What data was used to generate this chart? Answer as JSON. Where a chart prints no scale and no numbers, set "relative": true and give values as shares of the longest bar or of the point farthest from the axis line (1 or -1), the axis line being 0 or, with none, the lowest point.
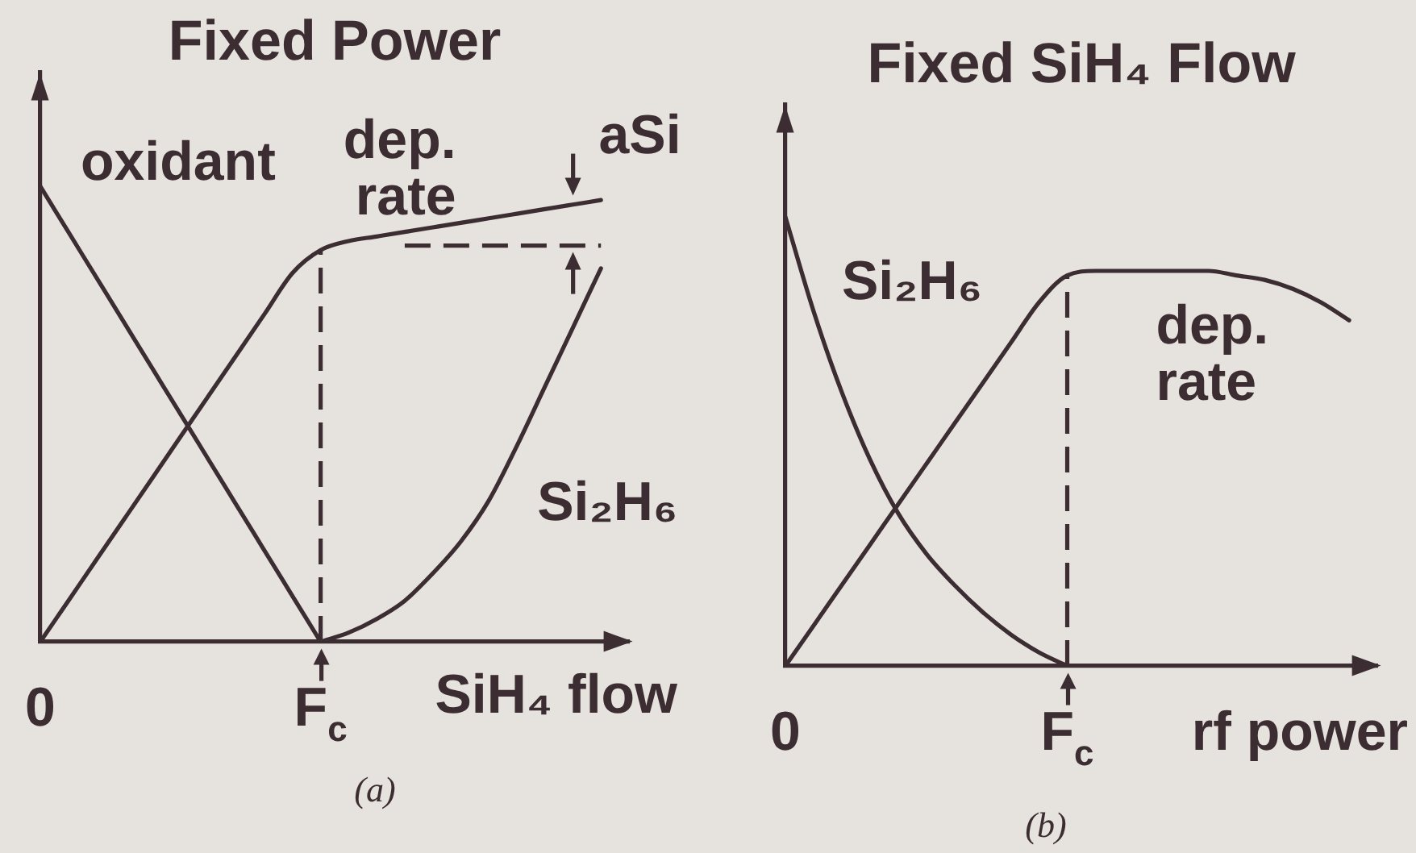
{
  "chart_data": [
    {
      "type": "line",
      "title": "Fixed Power",
      "xlabel": "SiH₄ flow",
      "relative": true,
      "tick_labels": "x",
      "marker": "none",
      "categories": [
        "0",
        null,
        null,
        null,
        null,
        null,
        null,
        null,
        null,
        null,
        "F$_{c}$",
        null,
        null,
        null,
        null,
        null,
        null,
        null,
        null,
        null,
        null,
        null
      ],
      "series": [
        {
          "name": "oxidant",
          "color": "#3b2d31",
          "values": [
            1,
            0.9,
            0.8,
            0.7,
            0.6,
            0.5,
            0.4,
            0.3,
            0.2,
            0.1,
            0,
            null,
            null,
            null,
            null,
            null,
            null,
            null,
            null,
            null,
            null,
            null
          ]
        },
        {
          "name": "dep. rate",
          "color": "#3b2d31",
          "values": [
            0,
            0.09,
            0.18,
            0.27,
            0.36,
            0.45,
            0.54,
            0.63,
            0.72,
            0.81,
            0.86,
            0.88,
            0.89,
            0.9,
            0.91,
            0.92,
            0.93,
            0.94,
            0.95,
            0.96,
            0.97,
            null
          ]
        },
        {
          "name": "Si₂H₆",
          "color": "#3b2d31",
          "values": [
            null,
            null,
            null,
            null,
            null,
            null,
            null,
            null,
            null,
            null,
            0,
            0.02,
            0.05,
            0.09,
            0.15,
            0.22,
            0.31,
            0.43,
            0.56,
            0.69,
            0.82,
            null
          ]
        },
        {
          "color": "#3b2d31",
          "line_style": "dashed",
          "values": [
            null,
            null,
            null,
            null,
            null,
            null,
            null,
            null,
            null,
            null,
            null,
            null,
            null,
            0.87,
            0.87,
            0.87,
            0.87,
            0.87,
            0.87,
            0.87,
            0.87,
            null
          ]
        }
      ],
      "ref_lines": [
        {
          "axis": "x",
          "value": "F$_{c}$",
          "color": "#3b2d31",
          "line_style": "dashed"
        }
      ],
      "annotations": [
        "aSi",
        "(a)"
      ]
    },
    {
      "type": "line",
      "title": "Fixed SiH₄ Flow",
      "xlabel": "rf power",
      "relative": true,
      "tick_labels": "x",
      "marker": "none",
      "categories": [
        "0",
        null,
        null,
        null,
        null,
        null,
        null,
        null,
        null,
        null,
        "F$_{c}$",
        null,
        null,
        null,
        null,
        null,
        null,
        null,
        null,
        null,
        null,
        null
      ],
      "series": [
        {
          "name": "Si₂H₆",
          "color": "#3b2d31",
          "values": [
            1,
            0.79,
            0.61,
            0.46,
            0.34,
            0.25,
            0.18,
            0.12,
            0.07,
            0.03,
            0,
            null,
            null,
            null,
            null,
            null,
            null,
            null,
            null,
            null,
            null,
            null
          ]
        },
        {
          "name": "dep. rate",
          "color": "#3b2d31",
          "values": [
            0,
            0.09,
            0.18,
            0.27,
            0.36,
            0.45,
            0.54,
            0.63,
            0.72,
            0.81,
            0.87,
            0.88,
            0.88,
            0.88,
            0.88,
            0.88,
            0.87,
            0.86,
            0.84,
            0.81,
            0.77,
            null
          ]
        }
      ],
      "ref_lines": [
        {
          "axis": "x",
          "value": "F$_{c}$",
          "color": "#3b2d31",
          "line_style": "dashed"
        }
      ],
      "annotations": [
        "(b)"
      ]
    }
  ]
}
